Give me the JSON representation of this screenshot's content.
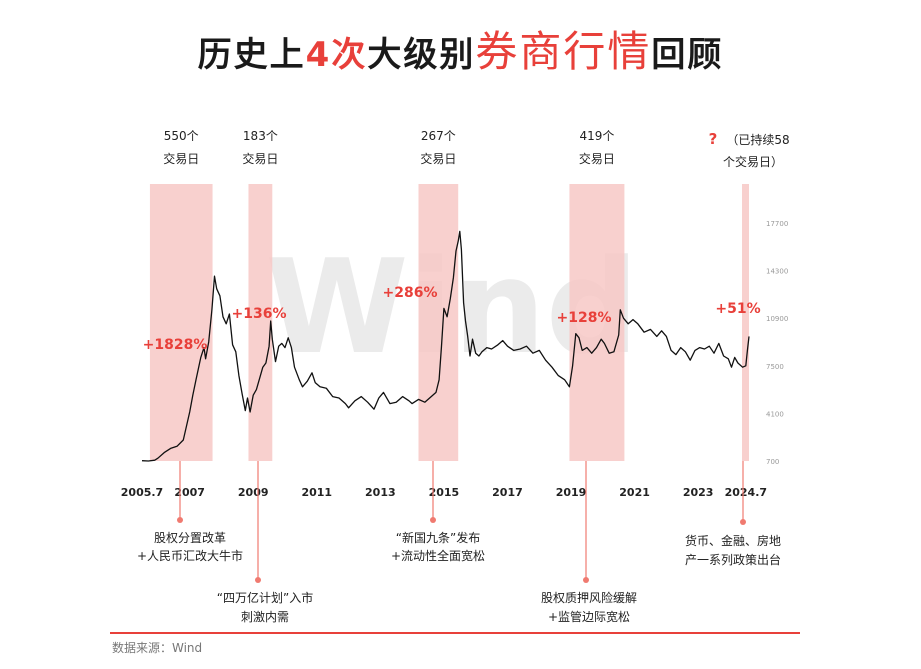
{
  "title": {
    "part1": "历史上",
    "part2": "4次",
    "part3": "大级别",
    "part4": "券商行情",
    "part5": "回顾"
  },
  "chart_data": {
    "type": "line",
    "title": "历史上4次大级别券商行情回顾",
    "y_ticks": [
      "17700",
      "14300",
      "10900",
      "7500",
      "4100",
      "700"
    ],
    "x_ticks": [
      "2005.7",
      "2007",
      "2009",
      "2011",
      "2013",
      "2015",
      "2017",
      "2019",
      "2021",
      "2023",
      "2024.7"
    ],
    "x_ticks_numeric": [
      2005.5,
      2007,
      2009,
      2011,
      2013,
      2015,
      2017,
      2019,
      2021,
      2023,
      2024.5
    ],
    "ylim": [
      700,
      17700
    ],
    "xlim": [
      2005.5,
      2024.6
    ],
    "series": [
      {
        "points": [
          [
            2005.5,
            720
          ],
          [
            2005.7,
            700
          ],
          [
            2005.9,
            760
          ],
          [
            2006.0,
            900
          ],
          [
            2006.2,
            1300
          ],
          [
            2006.4,
            1600
          ],
          [
            2006.6,
            1750
          ],
          [
            2006.8,
            2200
          ],
          [
            2006.9,
            3200
          ],
          [
            2007.0,
            4200
          ],
          [
            2007.1,
            5400
          ],
          [
            2007.2,
            6500
          ],
          [
            2007.35,
            8100
          ],
          [
            2007.45,
            8800
          ],
          [
            2007.5,
            8000
          ],
          [
            2007.6,
            9200
          ],
          [
            2007.7,
            11500
          ],
          [
            2007.78,
            13900
          ],
          [
            2007.85,
            13000
          ],
          [
            2007.95,
            12500
          ],
          [
            2008.05,
            11000
          ],
          [
            2008.15,
            10500
          ],
          [
            2008.25,
            11200
          ],
          [
            2008.35,
            9000
          ],
          [
            2008.45,
            8500
          ],
          [
            2008.55,
            6800
          ],
          [
            2008.65,
            5500
          ],
          [
            2008.75,
            4300
          ],
          [
            2008.82,
            5200
          ],
          [
            2008.9,
            4200
          ],
          [
            2009.0,
            5400
          ],
          [
            2009.1,
            5800
          ],
          [
            2009.2,
            6600
          ],
          [
            2009.3,
            7400
          ],
          [
            2009.4,
            7700
          ],
          [
            2009.5,
            8900
          ],
          [
            2009.55,
            10700
          ],
          [
            2009.6,
            9400
          ],
          [
            2009.7,
            7800
          ],
          [
            2009.8,
            8900
          ],
          [
            2009.9,
            9100
          ],
          [
            2010.0,
            8800
          ],
          [
            2010.1,
            9500
          ],
          [
            2010.2,
            8800
          ],
          [
            2010.3,
            7400
          ],
          [
            2010.45,
            6500
          ],
          [
            2010.55,
            6000
          ],
          [
            2010.7,
            6400
          ],
          [
            2010.85,
            7000
          ],
          [
            2010.95,
            6300
          ],
          [
            2011.1,
            6000
          ],
          [
            2011.3,
            5900
          ],
          [
            2011.5,
            5300
          ],
          [
            2011.7,
            5200
          ],
          [
            2011.9,
            4800
          ],
          [
            2012.0,
            4500
          ],
          [
            2012.2,
            5000
          ],
          [
            2012.4,
            5300
          ],
          [
            2012.6,
            4900
          ],
          [
            2012.8,
            4400
          ],
          [
            2012.95,
            5200
          ],
          [
            2013.1,
            5600
          ],
          [
            2013.3,
            4800
          ],
          [
            2013.5,
            4900
          ],
          [
            2013.7,
            5300
          ],
          [
            2013.9,
            5000
          ],
          [
            2014.0,
            4800
          ],
          [
            2014.2,
            5100
          ],
          [
            2014.4,
            4900
          ],
          [
            2014.6,
            5300
          ],
          [
            2014.75,
            5600
          ],
          [
            2014.85,
            6500
          ],
          [
            2014.92,
            8800
          ],
          [
            2015.0,
            11600
          ],
          [
            2015.1,
            11000
          ],
          [
            2015.2,
            12300
          ],
          [
            2015.3,
            13800
          ],
          [
            2015.38,
            15700
          ],
          [
            2015.45,
            16400
          ],
          [
            2015.5,
            17100
          ],
          [
            2015.55,
            15800
          ],
          [
            2015.62,
            12000
          ],
          [
            2015.68,
            10700
          ],
          [
            2015.75,
            9600
          ],
          [
            2015.82,
            8200
          ],
          [
            2015.9,
            9400
          ],
          [
            2016.0,
            8400
          ],
          [
            2016.1,
            8200
          ],
          [
            2016.2,
            8500
          ],
          [
            2016.35,
            8800
          ],
          [
            2016.5,
            8700
          ],
          [
            2016.7,
            9000
          ],
          [
            2016.85,
            9300
          ],
          [
            2017.0,
            8900
          ],
          [
            2017.2,
            8600
          ],
          [
            2017.4,
            8700
          ],
          [
            2017.6,
            8900
          ],
          [
            2017.8,
            8400
          ],
          [
            2018.0,
            8600
          ],
          [
            2018.2,
            7900
          ],
          [
            2018.4,
            7400
          ],
          [
            2018.6,
            6800
          ],
          [
            2018.8,
            6500
          ],
          [
            2018.95,
            6000
          ],
          [
            2019.05,
            7500
          ],
          [
            2019.15,
            9800
          ],
          [
            2019.25,
            9500
          ],
          [
            2019.35,
            8600
          ],
          [
            2019.5,
            8800
          ],
          [
            2019.65,
            8400
          ],
          [
            2019.8,
            8800
          ],
          [
            2019.95,
            9400
          ],
          [
            2020.05,
            9100
          ],
          [
            2020.2,
            8400
          ],
          [
            2020.35,
            8500
          ],
          [
            2020.5,
            9700
          ],
          [
            2020.55,
            11500
          ],
          [
            2020.65,
            10900
          ],
          [
            2020.8,
            10500
          ],
          [
            2020.95,
            10800
          ],
          [
            2021.1,
            10500
          ],
          [
            2021.3,
            9900
          ],
          [
            2021.5,
            10100
          ],
          [
            2021.7,
            9600
          ],
          [
            2021.85,
            10000
          ],
          [
            2022.0,
            9600
          ],
          [
            2022.15,
            8600
          ],
          [
            2022.3,
            8300
          ],
          [
            2022.45,
            8800
          ],
          [
            2022.6,
            8500
          ],
          [
            2022.75,
            7900
          ],
          [
            2022.9,
            8600
          ],
          [
            2023.05,
            8800
          ],
          [
            2023.2,
            8700
          ],
          [
            2023.35,
            8900
          ],
          [
            2023.5,
            8400
          ],
          [
            2023.65,
            9100
          ],
          [
            2023.8,
            8200
          ],
          [
            2023.95,
            8000
          ],
          [
            2024.05,
            7400
          ],
          [
            2024.15,
            8100
          ],
          [
            2024.25,
            7700
          ],
          [
            2024.4,
            7400
          ],
          [
            2024.5,
            7500
          ],
          [
            2024.55,
            8600
          ],
          [
            2024.6,
            9600
          ]
        ]
      }
    ],
    "highlight_periods": [
      {
        "start": 2005.75,
        "end": 2007.72,
        "gain": "+1828%",
        "days_line1": "550个",
        "days_line2": "交易日",
        "cause_line1": "股权分置改革",
        "cause_line2": "+人民币汇改大牛市"
      },
      {
        "start": 2008.85,
        "end": 2009.6,
        "gain": "+136%",
        "days_line1": "183个",
        "days_line2": "交易日",
        "cause_line1": "“四万亿计划”入市",
        "cause_line2": "刺激内需"
      },
      {
        "start": 2014.2,
        "end": 2015.45,
        "gain": "+286%",
        "days_line1": "267个",
        "days_line2": "交易日",
        "cause_line1": "“新国九条”发布",
        "cause_line2": "+流动性全面宽松"
      },
      {
        "start": 2018.95,
        "end": 2020.68,
        "gain": "+128%",
        "days_line1": "419个",
        "days_line2": "交易日",
        "cause_line1": "股权质押风险缓解",
        "cause_line2": "+监管边际宽松"
      },
      {
        "start": 2024.38,
        "end": 2024.6,
        "gain": "+51%",
        "days_q": "?",
        "days_line1": "（已持续58",
        "days_line2": "个交易日）",
        "cause_line1": "货币、金融、房地",
        "cause_line2": "产一系列政策出台"
      }
    ],
    "watermark": "Wind",
    "colors": {
      "line": "#111111",
      "band": "#f7c8c6",
      "accent": "#e8403a",
      "connector": "#f07a70"
    }
  },
  "source": "数据来源：Wind"
}
